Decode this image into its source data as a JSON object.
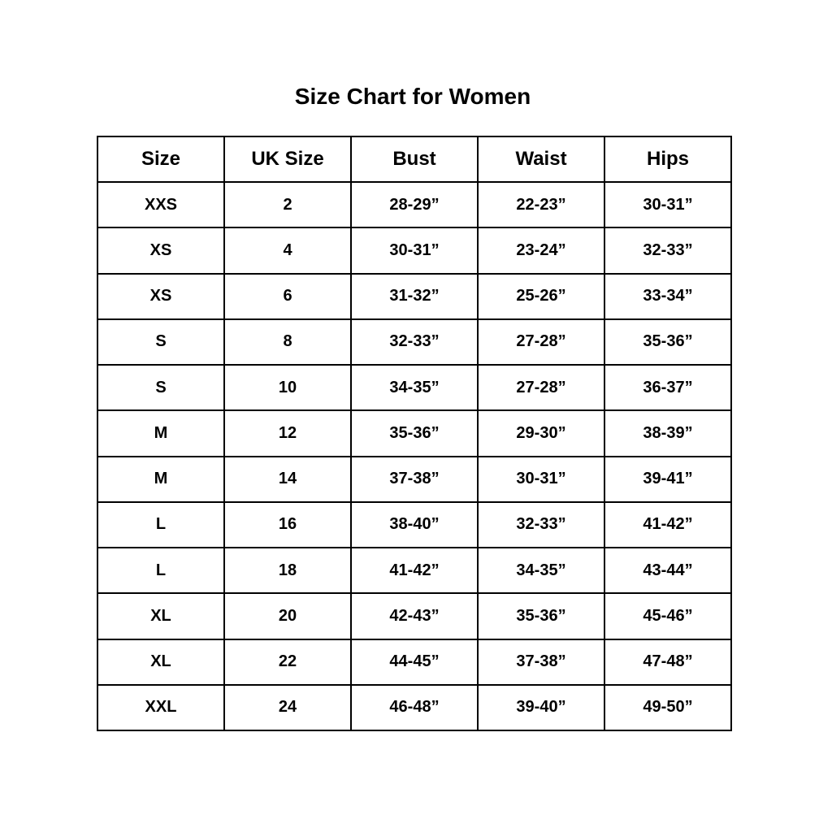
{
  "title": "Size Chart for Women",
  "columns": [
    "Size",
    "UK Size",
    "Bust",
    "Waist",
    "Hips"
  ],
  "rows": [
    [
      "XXS",
      "2",
      "28-29”",
      "22-23”",
      "30-31”"
    ],
    [
      "XS",
      "4",
      "30-31”",
      "23-24”",
      "32-33”"
    ],
    [
      "XS",
      "6",
      "31-32”",
      "25-26”",
      "33-34”"
    ],
    [
      "S",
      "8",
      "32-33”",
      "27-28”",
      "35-36”"
    ],
    [
      "S",
      "10",
      "34-35”",
      "27-28”",
      "36-37”"
    ],
    [
      "M",
      "12",
      "35-36”",
      "29-30”",
      "38-39”"
    ],
    [
      "M",
      "14",
      "37-38”",
      "30-31”",
      "39-41”"
    ],
    [
      "L",
      "16",
      "38-40”",
      "32-33”",
      "41-42”"
    ],
    [
      "L",
      "18",
      "41-42”",
      "34-35”",
      "43-44”"
    ],
    [
      "XL",
      "20",
      "42-43”",
      "35-36”",
      "45-46”"
    ],
    [
      "XL",
      "22",
      "44-45”",
      "37-38”",
      "47-48”"
    ],
    [
      "XXL",
      "24",
      "46-48”",
      "39-40”",
      "49-50”"
    ]
  ]
}
